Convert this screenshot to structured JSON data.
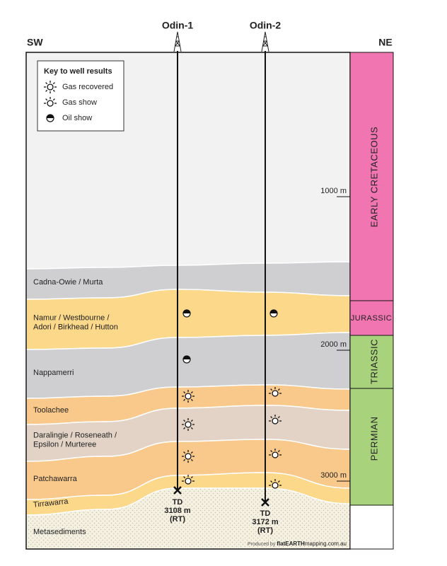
{
  "header": {
    "left": "SW",
    "right": "NE"
  },
  "wells": [
    {
      "name": "Odin-1",
      "td": [
        "TD",
        "3108 m",
        "(RT)"
      ]
    },
    {
      "name": "Odin-2",
      "td": [
        "TD",
        "3172 m",
        "(RT)"
      ]
    }
  ],
  "legend": {
    "title": "Key to well results",
    "items": [
      "Gas recovered",
      "Gas show",
      "Oil show"
    ]
  },
  "layers": [
    [
      "Cadna-Owie / Murta"
    ],
    [
      "Namur / Westbourne /",
      "Adori / Birkhead / Hutton"
    ],
    [
      "Nappamerri"
    ],
    [
      "Toolachee"
    ],
    [
      "Daralingie / Roseneath /",
      "Epsilon / Murteree"
    ],
    [
      "Patchawarra"
    ],
    [
      "Tirrawarra"
    ],
    [
      "Metasediments"
    ]
  ],
  "periods": [
    "EARLY CRETACEOUS",
    "JURASSIC",
    "TRIASSIC",
    "PERMIAN"
  ],
  "depths": [
    "1000 m",
    "2000 m",
    "3000 m"
  ],
  "credit": [
    "Produced by",
    "flatEARTH",
    "mapping.com.au"
  ]
}
